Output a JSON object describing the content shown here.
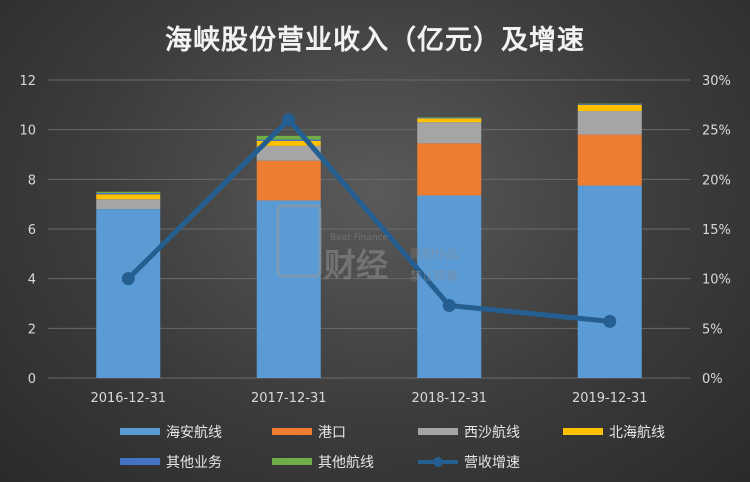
{
  "chart_data": {
    "type": "bar",
    "title": "海峡股份营业收入（亿元）及增速",
    "categories": [
      "2016-12-31",
      "2017-12-31",
      "2018-12-31",
      "2019-12-31"
    ],
    "stacked": true,
    "ylim": [
      0,
      12
    ],
    "y_ticks": [
      "0",
      "2",
      "4",
      "6",
      "8",
      "10",
      "12"
    ],
    "y2lim": [
      0,
      30
    ],
    "y2_ticks": [
      "0%",
      "5%",
      "10%",
      "15%",
      "20%",
      "25%",
      "30%"
    ],
    "series": [
      {
        "name": "海安航线",
        "color": "#5b9bd5",
        "values": [
          6.8,
          7.15,
          7.35,
          7.75
        ]
      },
      {
        "name": "港口",
        "color": "#ed7d31",
        "values": [
          0.0,
          1.6,
          2.1,
          2.05
        ]
      },
      {
        "name": "西沙航线",
        "color": "#a5a5a5",
        "values": [
          0.4,
          0.6,
          0.85,
          0.95
        ]
      },
      {
        "name": "北海航线",
        "color": "#ffc000",
        "values": [
          0.2,
          0.2,
          0.15,
          0.25
        ]
      },
      {
        "name": "其他业务",
        "color": "#4472c4",
        "values": [
          0.05,
          0.05,
          0.03,
          0.03
        ]
      },
      {
        "name": "其他航线",
        "color": "#70ad47",
        "values": [
          0.05,
          0.15,
          0.02,
          0.02
        ]
      }
    ],
    "line_series": {
      "name": "营收增速",
      "color": "#255e91",
      "axis": "right",
      "values": [
        10,
        26,
        7.3,
        5.7
      ]
    },
    "grid": true,
    "legend": "bottom",
    "watermark": [
      "财经",
      "原创作品",
      "禁止转载",
      "Beat Finance"
    ]
  }
}
